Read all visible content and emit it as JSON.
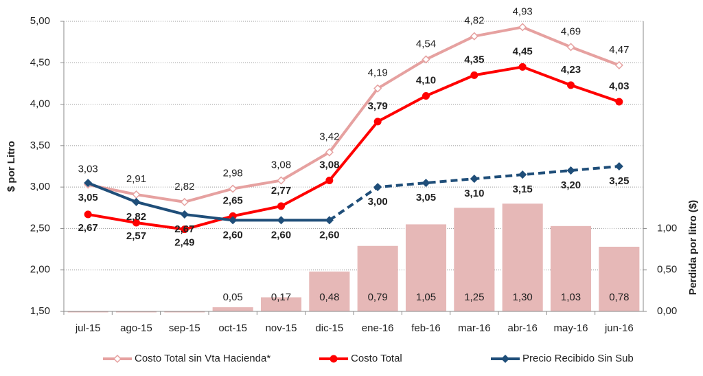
{
  "chart_data": {
    "type": "combo",
    "categories": [
      "jul-15",
      "ago-15",
      "sep-15",
      "oct-15",
      "nov-15",
      "dic-15",
      "ene-16",
      "feb-16",
      "mar-16",
      "abr-16",
      "may-16",
      "jun-16"
    ],
    "y_label": "$ por Litro",
    "y2_label": "Perdida por litro ($)",
    "ylim": [
      1.5,
      5.0
    ],
    "yticks": [
      {
        "value": 1.5,
        "label": "1,50"
      },
      {
        "value": 2.0,
        "label": "2,00"
      },
      {
        "value": 2.5,
        "label": "2,50"
      },
      {
        "value": 3.0,
        "label": "3,00"
      },
      {
        "value": 3.5,
        "label": "3,50"
      },
      {
        "value": 4.0,
        "label": "4,00"
      },
      {
        "value": 4.5,
        "label": "4,50"
      },
      {
        "value": 5.0,
        "label": "5,00"
      }
    ],
    "y2lim": [
      0,
      3.5
    ],
    "y2ticks": [
      {
        "value": 0,
        "label": "0,00"
      },
      {
        "value": 0.5,
        "label": "0,50"
      },
      {
        "value": 1.0,
        "label": "1,00"
      }
    ],
    "grid": true,
    "bars": {
      "axis": "y2",
      "color": "#e6b8b7",
      "values": [
        0,
        0,
        0,
        0.05,
        0.17,
        0.48,
        0.79,
        1.05,
        1.25,
        1.3,
        1.03,
        0.78
      ],
      "value_labels": [
        null,
        null,
        null,
        "0,05",
        "0,17",
        "0,48",
        "0,79",
        "1,05",
        "1,25",
        "1,30",
        "1,03",
        "0,78"
      ]
    },
    "series": [
      {
        "name": "Costo Total sin Vta Hacienda*",
        "color": "#e6a1a0",
        "marker": "diamond",
        "values": [
          3.03,
          2.91,
          2.82,
          2.98,
          3.08,
          3.42,
          4.19,
          4.54,
          4.82,
          4.93,
          4.69,
          4.47
        ],
        "value_labels": [
          "3,03",
          "2,91",
          "2,82",
          "2,98",
          "3,08",
          "3,42",
          "4,19",
          "4,54",
          "4,82",
          "4,93",
          "4,69",
          "4,47"
        ]
      },
      {
        "name": "Costo Total",
        "color": "#ff0000",
        "marker": "circle",
        "values": [
          2.67,
          2.57,
          2.49,
          2.65,
          2.77,
          3.08,
          3.79,
          4.1,
          4.35,
          4.45,
          4.23,
          4.03
        ],
        "value_labels": [
          "2,67",
          "2,57",
          "2,49",
          "2,65",
          "2,77",
          "3,08",
          "3,79",
          "4,10",
          "4,35",
          "4,45",
          "4,23",
          "4,03"
        ]
      },
      {
        "name": "Precio Recibido Sin Sub",
        "color": "#1f4e79",
        "marker": "diamond",
        "dashed_from": "dic-15",
        "values": [
          3.05,
          2.82,
          2.67,
          2.6,
          2.6,
          2.6,
          3.0,
          3.05,
          3.1,
          3.15,
          3.2,
          3.25
        ],
        "value_labels": [
          "3,05",
          "2,82",
          "2,67",
          "2,60",
          "2,60",
          "2,60",
          "3,00",
          "3,05",
          "3,10",
          "3,15",
          "3,20",
          "3,25"
        ]
      }
    ]
  }
}
